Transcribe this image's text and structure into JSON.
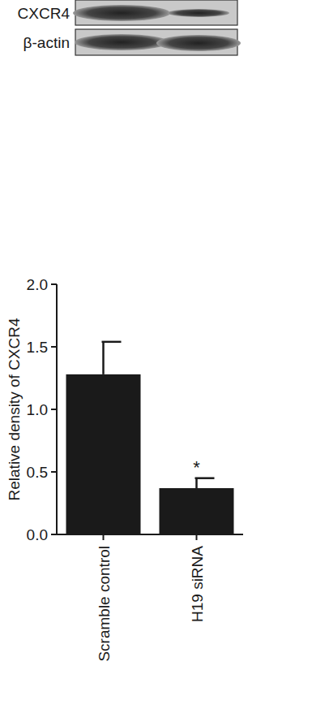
{
  "chart_data": {
    "type": "bar",
    "blot_labels": [
      "CXCR4",
      "β-actin"
    ],
    "y_label": "Relative density of CXCR4",
    "categories": [
      "Scramble control",
      "H19 siRNA"
    ],
    "values": [
      1.28,
      0.37
    ],
    "errors": [
      0.26,
      0.08
    ],
    "color": "#1a1a1a",
    "ylim": [
      0,
      2.0
    ],
    "yticks": [
      {
        "value": 0,
        "label": "0.0"
      },
      0.5,
      {
        "value": 1.0,
        "label": "1.0"
      },
      1.5,
      {
        "value": 2.0,
        "label": "2.0"
      }
    ],
    "annotations": [
      {
        "text": "*",
        "category": "H19 siRNA"
      }
    ],
    "grid": false
  }
}
